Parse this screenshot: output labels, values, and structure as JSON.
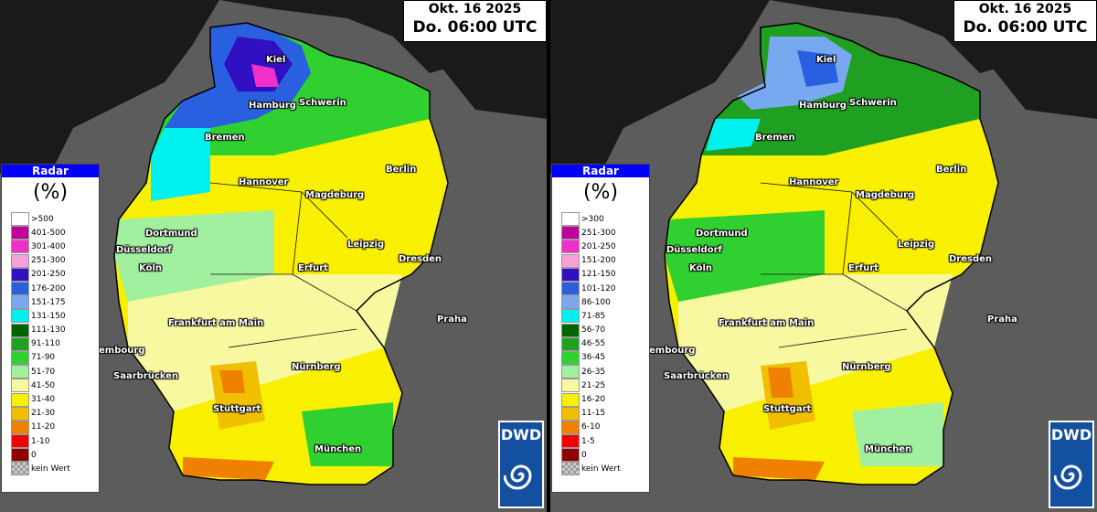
{
  "panels": [
    {
      "date": "Okt. 16 2025",
      "time": "Do. 06:00 UTC",
      "legend_title": "Radar",
      "legend_unit": "(%)",
      "legend": [
        {
          "label": ">500",
          "color": "#ffffff"
        },
        {
          "label": "401-500",
          "color": "#c0009a"
        },
        {
          "label": "301-400",
          "color": "#f030c8"
        },
        {
          "label": "251-300",
          "color": "#f8a0d8"
        },
        {
          "label": "201-250",
          "color": "#3010c0"
        },
        {
          "label": "176-200",
          "color": "#2860e0"
        },
        {
          "label": "151-175",
          "color": "#78a8f0"
        },
        {
          "label": "131-150",
          "color": "#00f0f0"
        },
        {
          "label": "111-130",
          "color": "#006400"
        },
        {
          "label": "91-110",
          "color": "#20a020"
        },
        {
          "label": "71-90",
          "color": "#30d030"
        },
        {
          "label": "51-70",
          "color": "#a0f0a0"
        },
        {
          "label": "41-50",
          "color": "#f8f8a0"
        },
        {
          "label": "31-40",
          "color": "#f8f000"
        },
        {
          "label": "21-30",
          "color": "#f0c000"
        },
        {
          "label": "11-20",
          "color": "#f08000"
        },
        {
          "label": "1-10",
          "color": "#f00000"
        },
        {
          "label": "0",
          "color": "#900000"
        },
        {
          "label": "kein Wert",
          "color": "checker"
        }
      ],
      "logo": "DWD"
    },
    {
      "date": "Okt. 16 2025",
      "time": "Do. 06:00 UTC",
      "legend_title": "Radar",
      "legend_unit": "(%)",
      "legend": [
        {
          "label": ">300",
          "color": "#ffffff"
        },
        {
          "label": "251-300",
          "color": "#c0009a"
        },
        {
          "label": "201-250",
          "color": "#f030c8"
        },
        {
          "label": "151-200",
          "color": "#f8a0d8"
        },
        {
          "label": "121-150",
          "color": "#3010c0"
        },
        {
          "label": "101-120",
          "color": "#2860e0"
        },
        {
          "label": "86-100",
          "color": "#78a8f0"
        },
        {
          "label": "71-85",
          "color": "#00f0f0"
        },
        {
          "label": "56-70",
          "color": "#006400"
        },
        {
          "label": "46-55",
          "color": "#20a020"
        },
        {
          "label": "36-45",
          "color": "#30d030"
        },
        {
          "label": "26-35",
          "color": "#a0f0a0"
        },
        {
          "label": "21-25",
          "color": "#f8f8a0"
        },
        {
          "label": "16-20",
          "color": "#f8f000"
        },
        {
          "label": "11-15",
          "color": "#f0c000"
        },
        {
          "label": "6-10",
          "color": "#f08000"
        },
        {
          "label": "1-5",
          "color": "#f00000"
        },
        {
          "label": "0",
          "color": "#900000"
        },
        {
          "label": "kein Wert",
          "color": "checker"
        }
      ],
      "logo": "DWD"
    }
  ],
  "cities": [
    {
      "name": "Kiel"
    },
    {
      "name": "Hamburg"
    },
    {
      "name": "Schwerin"
    },
    {
      "name": "Bremen"
    },
    {
      "name": "Berlin"
    },
    {
      "name": "Hannover"
    },
    {
      "name": "Magdeburg"
    },
    {
      "name": "Dortmund"
    },
    {
      "name": "Düsseldorf"
    },
    {
      "name": "Leipzig"
    },
    {
      "name": "Köln"
    },
    {
      "name": "Erfurt"
    },
    {
      "name": "Dresden"
    },
    {
      "name": "Frankfurt am Main"
    },
    {
      "name": "Praha"
    },
    {
      "name": "embourg"
    },
    {
      "name": "Nürnberg"
    },
    {
      "name": "Saarbrücken"
    },
    {
      "name": "Stuttgart"
    },
    {
      "name": "München"
    }
  ]
}
